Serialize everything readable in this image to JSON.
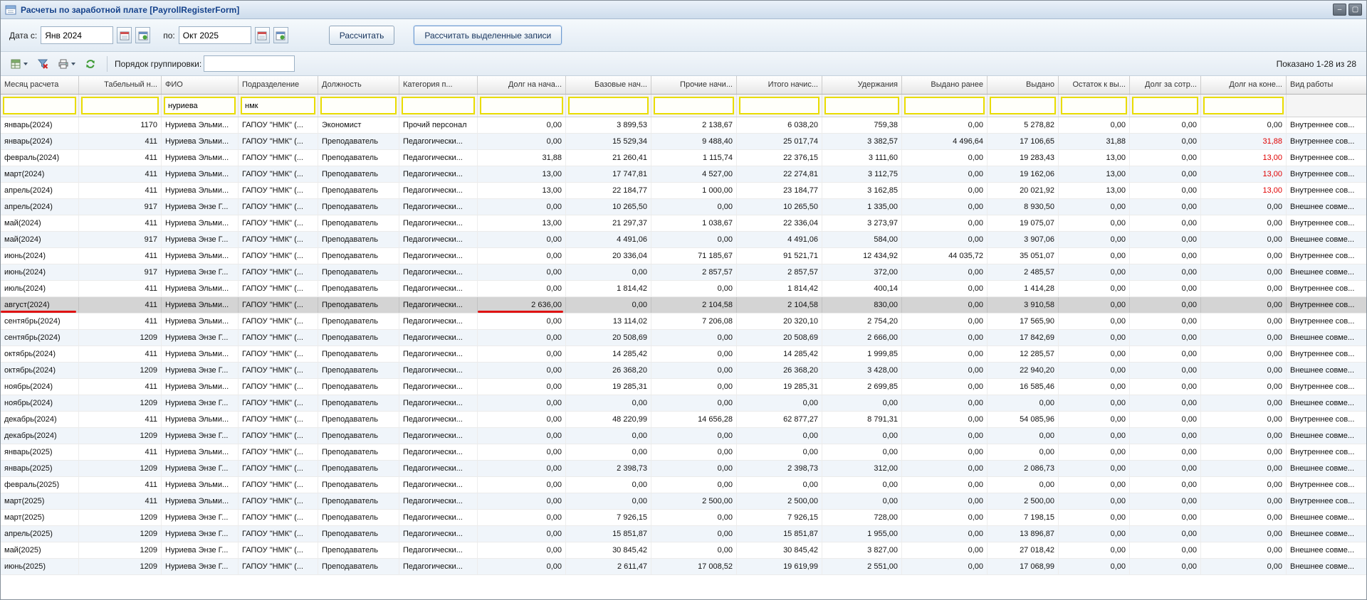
{
  "window": {
    "title": "Расчеты по заработной плате [PayrollRegisterForm]",
    "minimize_label": "–",
    "maximize_label": "▢"
  },
  "toolbar": {
    "date_from_label": "Дата с:",
    "date_from_value": "Янв 2024",
    "date_to_label": "по:",
    "date_to_value": "Окт 2025",
    "calculate_button": "Рассчитать",
    "calculate_selected_button": "Рассчитать выделенные записи"
  },
  "toolbar2": {
    "grouping_label": "Порядок группировки:",
    "grouping_value": "",
    "records_shown": "Показано 1-28 из 28"
  },
  "grid": {
    "columns": [
      "Месяц расчета",
      "Табельный н...",
      "ФИО",
      "Подразделение",
      "Должность",
      "Категория п...",
      "Долг на нача...",
      "Базовые нач...",
      "Прочие начи...",
      "Итого начис...",
      "Удержания",
      "Выдано ранее",
      "Выдано",
      "Остаток к вы...",
      "Долг за сотр...",
      "Долг на коне...",
      "Вид работы"
    ],
    "filters": [
      "",
      "",
      "нуриева",
      "нмк",
      "",
      "",
      "",
      "",
      "",
      "",
      "",
      "",
      "",
      "",
      "",
      "",
      null
    ],
    "selected_row_index": 11,
    "red_cells": [
      {
        "row": 1,
        "col": 15
      },
      {
        "row": 2,
        "col": 15
      },
      {
        "row": 3,
        "col": 15
      },
      {
        "row": 4,
        "col": 15
      }
    ],
    "annotations": [
      {
        "row": 11,
        "col": 0
      },
      {
        "row": 11,
        "col": 6
      }
    ],
    "rows": [
      [
        "январь(2024)",
        "1170",
        "Нуриева Эльми...",
        "ГАПОУ \"НМК\" (...",
        "Экономист",
        "Прочий персонал",
        "0,00",
        "3 899,53",
        "2 138,67",
        "6 038,20",
        "759,38",
        "0,00",
        "5 278,82",
        "0,00",
        "0,00",
        "0,00",
        "Внутреннее сов..."
      ],
      [
        "январь(2024)",
        "411",
        "Нуриева Эльми...",
        "ГАПОУ \"НМК\" (...",
        "Преподаватель",
        "Педагогически...",
        "0,00",
        "15 529,34",
        "9 488,40",
        "25 017,74",
        "3 382,57",
        "4 496,64",
        "17 106,65",
        "31,88",
        "0,00",
        "31,88",
        "Внутреннее сов..."
      ],
      [
        "февраль(2024)",
        "411",
        "Нуриева Эльми...",
        "ГАПОУ \"НМК\" (...",
        "Преподаватель",
        "Педагогически...",
        "31,88",
        "21 260,41",
        "1 115,74",
        "22 376,15",
        "3 111,60",
        "0,00",
        "19 283,43",
        "13,00",
        "0,00",
        "13,00",
        "Внутреннее сов..."
      ],
      [
        "март(2024)",
        "411",
        "Нуриева Эльми...",
        "ГАПОУ \"НМК\" (...",
        "Преподаватель",
        "Педагогически...",
        "13,00",
        "17 747,81",
        "4 527,00",
        "22 274,81",
        "3 112,75",
        "0,00",
        "19 162,06",
        "13,00",
        "0,00",
        "13,00",
        "Внутреннее сов..."
      ],
      [
        "апрель(2024)",
        "411",
        "Нуриева Эльми...",
        "ГАПОУ \"НМК\" (...",
        "Преподаватель",
        "Педагогически...",
        "13,00",
        "22 184,77",
        "1 000,00",
        "23 184,77",
        "3 162,85",
        "0,00",
        "20 021,92",
        "13,00",
        "0,00",
        "13,00",
        "Внутреннее сов..."
      ],
      [
        "апрель(2024)",
        "917",
        "Нуриева Энзе Г...",
        "ГАПОУ \"НМК\" (...",
        "Преподаватель",
        "Педагогически...",
        "0,00",
        "10 265,50",
        "0,00",
        "10 265,50",
        "1 335,00",
        "0,00",
        "8 930,50",
        "0,00",
        "0,00",
        "0,00",
        "Внешнее совме..."
      ],
      [
        "май(2024)",
        "411",
        "Нуриева Эльми...",
        "ГАПОУ \"НМК\" (...",
        "Преподаватель",
        "Педагогически...",
        "13,00",
        "21 297,37",
        "1 038,67",
        "22 336,04",
        "3 273,97",
        "0,00",
        "19 075,07",
        "0,00",
        "0,00",
        "0,00",
        "Внутреннее сов..."
      ],
      [
        "май(2024)",
        "917",
        "Нуриева Энзе Г...",
        "ГАПОУ \"НМК\" (...",
        "Преподаватель",
        "Педагогически...",
        "0,00",
        "4 491,06",
        "0,00",
        "4 491,06",
        "584,00",
        "0,00",
        "3 907,06",
        "0,00",
        "0,00",
        "0,00",
        "Внешнее совме..."
      ],
      [
        "июнь(2024)",
        "411",
        "Нуриева Эльми...",
        "ГАПОУ \"НМК\" (...",
        "Преподаватель",
        "Педагогически...",
        "0,00",
        "20 336,04",
        "71 185,67",
        "91 521,71",
        "12 434,92",
        "44 035,72",
        "35 051,07",
        "0,00",
        "0,00",
        "0,00",
        "Внутреннее сов..."
      ],
      [
        "июнь(2024)",
        "917",
        "Нуриева Энзе Г...",
        "ГАПОУ \"НМК\" (...",
        "Преподаватель",
        "Педагогически...",
        "0,00",
        "0,00",
        "2 857,57",
        "2 857,57",
        "372,00",
        "0,00",
        "2 485,57",
        "0,00",
        "0,00",
        "0,00",
        "Внешнее совме..."
      ],
      [
        "июль(2024)",
        "411",
        "Нуриева Эльми...",
        "ГАПОУ \"НМК\" (...",
        "Преподаватель",
        "Педагогически...",
        "0,00",
        "1 814,42",
        "0,00",
        "1 814,42",
        "400,14",
        "0,00",
        "1 414,28",
        "0,00",
        "0,00",
        "0,00",
        "Внутреннее сов..."
      ],
      [
        "август(2024)",
        "411",
        "Нуриева Эльми...",
        "ГАПОУ \"НМК\" (...",
        "Преподаватель",
        "Педагогически...",
        "2 636,00",
        "0,00",
        "2 104,58",
        "2 104,58",
        "830,00",
        "0,00",
        "3 910,58",
        "0,00",
        "0,00",
        "0,00",
        "Внутреннее сов..."
      ],
      [
        "сентябрь(2024)",
        "411",
        "Нуриева Эльми...",
        "ГАПОУ \"НМК\" (...",
        "Преподаватель",
        "Педагогически...",
        "0,00",
        "13 114,02",
        "7 206,08",
        "20 320,10",
        "2 754,20",
        "0,00",
        "17 565,90",
        "0,00",
        "0,00",
        "0,00",
        "Внутреннее сов..."
      ],
      [
        "сентябрь(2024)",
        "1209",
        "Нуриева Энзе Г...",
        "ГАПОУ \"НМК\" (...",
        "Преподаватель",
        "Педагогически...",
        "0,00",
        "20 508,69",
        "0,00",
        "20 508,69",
        "2 666,00",
        "0,00",
        "17 842,69",
        "0,00",
        "0,00",
        "0,00",
        "Внешнее совме..."
      ],
      [
        "октябрь(2024)",
        "411",
        "Нуриева Эльми...",
        "ГАПОУ \"НМК\" (...",
        "Преподаватель",
        "Педагогически...",
        "0,00",
        "14 285,42",
        "0,00",
        "14 285,42",
        "1 999,85",
        "0,00",
        "12 285,57",
        "0,00",
        "0,00",
        "0,00",
        "Внутреннее сов..."
      ],
      [
        "октябрь(2024)",
        "1209",
        "Нуриева Энзе Г...",
        "ГАПОУ \"НМК\" (...",
        "Преподаватель",
        "Педагогически...",
        "0,00",
        "26 368,20",
        "0,00",
        "26 368,20",
        "3 428,00",
        "0,00",
        "22 940,20",
        "0,00",
        "0,00",
        "0,00",
        "Внешнее совме..."
      ],
      [
        "ноябрь(2024)",
        "411",
        "Нуриева Эльми...",
        "ГАПОУ \"НМК\" (...",
        "Преподаватель",
        "Педагогически...",
        "0,00",
        "19 285,31",
        "0,00",
        "19 285,31",
        "2 699,85",
        "0,00",
        "16 585,46",
        "0,00",
        "0,00",
        "0,00",
        "Внутреннее сов..."
      ],
      [
        "ноябрь(2024)",
        "1209",
        "Нуриева Энзе Г...",
        "ГАПОУ \"НМК\" (...",
        "Преподаватель",
        "Педагогически...",
        "0,00",
        "0,00",
        "0,00",
        "0,00",
        "0,00",
        "0,00",
        "0,00",
        "0,00",
        "0,00",
        "0,00",
        "Внешнее совме..."
      ],
      [
        "декабрь(2024)",
        "411",
        "Нуриева Эльми...",
        "ГАПОУ \"НМК\" (...",
        "Преподаватель",
        "Педагогически...",
        "0,00",
        "48 220,99",
        "14 656,28",
        "62 877,27",
        "8 791,31",
        "0,00",
        "54 085,96",
        "0,00",
        "0,00",
        "0,00",
        "Внутреннее сов..."
      ],
      [
        "декабрь(2024)",
        "1209",
        "Нуриева Энзе Г...",
        "ГАПОУ \"НМК\" (...",
        "Преподаватель",
        "Педагогически...",
        "0,00",
        "0,00",
        "0,00",
        "0,00",
        "0,00",
        "0,00",
        "0,00",
        "0,00",
        "0,00",
        "0,00",
        "Внешнее совме..."
      ],
      [
        "январь(2025)",
        "411",
        "Нуриева Эльми...",
        "ГАПОУ \"НМК\" (...",
        "Преподаватель",
        "Педагогически...",
        "0,00",
        "0,00",
        "0,00",
        "0,00",
        "0,00",
        "0,00",
        "0,00",
        "0,00",
        "0,00",
        "0,00",
        "Внутреннее сов..."
      ],
      [
        "январь(2025)",
        "1209",
        "Нуриева Энзе Г...",
        "ГАПОУ \"НМК\" (...",
        "Преподаватель",
        "Педагогически...",
        "0,00",
        "2 398,73",
        "0,00",
        "2 398,73",
        "312,00",
        "0,00",
        "2 086,73",
        "0,00",
        "0,00",
        "0,00",
        "Внешнее совме..."
      ],
      [
        "февраль(2025)",
        "411",
        "Нуриева Эльми...",
        "ГАПОУ \"НМК\" (...",
        "Преподаватель",
        "Педагогически...",
        "0,00",
        "0,00",
        "0,00",
        "0,00",
        "0,00",
        "0,00",
        "0,00",
        "0,00",
        "0,00",
        "0,00",
        "Внутреннее сов..."
      ],
      [
        "март(2025)",
        "411",
        "Нуриева Эльми...",
        "ГАПОУ \"НМК\" (...",
        "Преподаватель",
        "Педагогически...",
        "0,00",
        "0,00",
        "2 500,00",
        "2 500,00",
        "0,00",
        "0,00",
        "2 500,00",
        "0,00",
        "0,00",
        "0,00",
        "Внутреннее сов..."
      ],
      [
        "март(2025)",
        "1209",
        "Нуриева Энзе Г...",
        "ГАПОУ \"НМК\" (...",
        "Преподаватель",
        "Педагогически...",
        "0,00",
        "7 926,15",
        "0,00",
        "7 926,15",
        "728,00",
        "0,00",
        "7 198,15",
        "0,00",
        "0,00",
        "0,00",
        "Внешнее совме..."
      ],
      [
        "апрель(2025)",
        "1209",
        "Нуриева Энзе Г...",
        "ГАПОУ \"НМК\" (...",
        "Преподаватель",
        "Педагогически...",
        "0,00",
        "15 851,87",
        "0,00",
        "15 851,87",
        "1 955,00",
        "0,00",
        "13 896,87",
        "0,00",
        "0,00",
        "0,00",
        "Внешнее совме..."
      ],
      [
        "май(2025)",
        "1209",
        "Нуриева Энзе Г...",
        "ГАПОУ \"НМК\" (...",
        "Преподаватель",
        "Педагогически...",
        "0,00",
        "30 845,42",
        "0,00",
        "30 845,42",
        "3 827,00",
        "0,00",
        "27 018,42",
        "0,00",
        "0,00",
        "0,00",
        "Внешнее совме..."
      ],
      [
        "июнь(2025)",
        "1209",
        "Нуриева Энзе Г...",
        "ГАПОУ \"НМК\" (...",
        "Преподаватель",
        "Педагогически...",
        "0,00",
        "2 611,47",
        "17 008,52",
        "19 619,99",
        "2 551,00",
        "0,00",
        "17 068,99",
        "0,00",
        "0,00",
        "0,00",
        "Внешнее совме..."
      ]
    ]
  }
}
